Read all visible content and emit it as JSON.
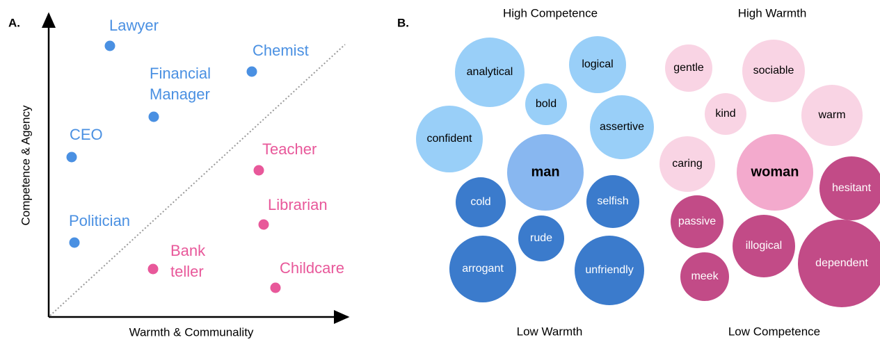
{
  "panel_a": {
    "label": "A.",
    "y_axis": "Competence & Agency",
    "x_axis": "Warmth & Communality",
    "points": [
      {
        "lines": [
          "Lawyer"
        ],
        "color": "#4a90e2"
      },
      {
        "lines": [
          "Chemist"
        ],
        "color": "#4a90e2"
      },
      {
        "lines": [
          "Financial",
          "Manager"
        ],
        "color": "#4a90e2"
      },
      {
        "lines": [
          "CEO"
        ],
        "color": "#4a90e2"
      },
      {
        "lines": [
          "Politician"
        ],
        "color": "#4a90e2"
      },
      {
        "lines": [
          "Teacher"
        ],
        "color": "#e8589a"
      },
      {
        "lines": [
          "Librarian"
        ],
        "color": "#e8589a"
      },
      {
        "lines": [
          "Bank",
          "teller"
        ],
        "color": "#e8589a"
      },
      {
        "lines": [
          "Childcare"
        ],
        "color": "#e8589a"
      }
    ]
  },
  "panel_b": {
    "label": "B.",
    "headers": {
      "top_left": "High Competence",
      "top_right": "High Warmth",
      "bottom_left": "Low Warmth",
      "bottom_right": "Low Competence"
    },
    "bubbles": [
      {
        "text": "analytical",
        "color": "#99cff8"
      },
      {
        "text": "logical",
        "color": "#99cff8"
      },
      {
        "text": "bold",
        "color": "#99cff8"
      },
      {
        "text": "confident",
        "color": "#99cff8"
      },
      {
        "text": "assertive",
        "color": "#99cff8"
      },
      {
        "text": "man",
        "color": "#88b7f0"
      },
      {
        "text": "cold",
        "color": "#3b7bcc"
      },
      {
        "text": "selfish",
        "color": "#3b7bcc"
      },
      {
        "text": "rude",
        "color": "#3b7bcc"
      },
      {
        "text": "arrogant",
        "color": "#3b7bcc"
      },
      {
        "text": "unfriendly",
        "color": "#3b7bcc"
      },
      {
        "text": "gentle",
        "color": "#f9d4e4"
      },
      {
        "text": "sociable",
        "color": "#f9d4e4"
      },
      {
        "text": "kind",
        "color": "#f9d4e4"
      },
      {
        "text": "warm",
        "color": "#f9d4e4"
      },
      {
        "text": "caring",
        "color": "#f9d4e4"
      },
      {
        "text": "woman",
        "color": "#f3aacd"
      },
      {
        "text": "hesitant",
        "color": "#c24b87"
      },
      {
        "text": "passive",
        "color": "#c24b87"
      },
      {
        "text": "illogical",
        "color": "#c24b87"
      },
      {
        "text": "dependent",
        "color": "#c24b87"
      },
      {
        "text": "meek",
        "color": "#c24b87"
      }
    ]
  }
}
